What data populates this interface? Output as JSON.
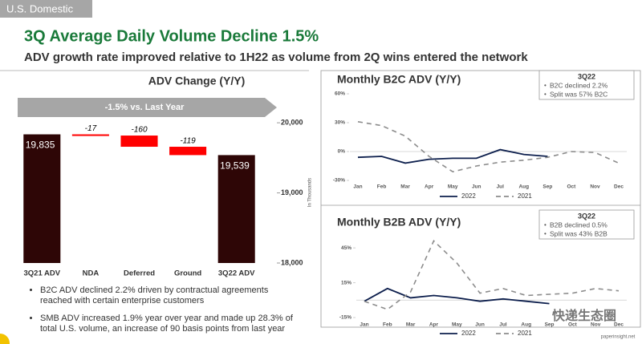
{
  "header": {
    "section": "U.S. Domestic",
    "title": "3Q Average Daily Volume Decline 1.5%",
    "subtitle": "ADV growth rate improved relative to 1H22 as volume from 2Q wins entered the network"
  },
  "chart_data": [
    {
      "type": "waterfall",
      "title": "ADV Change (Y/Y)",
      "banner": "-1.5% vs. Last Year",
      "y_label": "In Thousands",
      "categories": [
        "3Q21 ADV",
        "NDA",
        "Deferred",
        "Ground",
        "3Q22 ADV"
      ],
      "values": [
        19835,
        -17,
        -160,
        -119,
        19539
      ],
      "value_labels": [
        "19,835",
        "-17",
        "-160",
        "-119",
        "19,539"
      ],
      "colors": {
        "total": "#2e0606",
        "decrease": "#ff0000"
      },
      "ylim": [
        18000,
        20150
      ],
      "yticks": [
        {
          "value": 18000,
          "label": "18,000"
        },
        {
          "value": 19000,
          "label": "19,000"
        },
        {
          "value": 20000,
          "label": "20,000"
        }
      ]
    },
    {
      "type": "line",
      "title": "Monthly B2C ADV (Y/Y)",
      "categories": [
        "Jan",
        "Feb",
        "Mar",
        "Apr",
        "May",
        "Jun",
        "Jul",
        "Aug",
        "Sep",
        "Oct",
        "Nov",
        "Dec"
      ],
      "series": [
        {
          "name": "2022",
          "color": "#0d1f4d",
          "dashed": false,
          "values": [
            -6,
            -5,
            -12,
            -8,
            -7,
            -7,
            2,
            -3,
            -5,
            null,
            null,
            null
          ]
        },
        {
          "name": "2021",
          "color": "#8c8c8c",
          "dashed": true,
          "values": [
            31,
            27,
            16,
            -5,
            -21,
            -15,
            -11,
            -9,
            -6,
            0,
            -1,
            -12
          ]
        }
      ],
      "ylim": [
        -30,
        60
      ],
      "yticks": [
        {
          "value": -30,
          "label": "-30%"
        },
        {
          "value": 0,
          "label": "0%"
        },
        {
          "value": 30,
          "label": "30%"
        },
        {
          "value": 60,
          "label": "60%"
        }
      ],
      "box": {
        "heading": "3Q22",
        "lines": [
          "B2C declined 2.2%",
          "Split was 57% B2C"
        ]
      }
    },
    {
      "type": "line",
      "title": "Monthly B2B ADV (Y/Y)",
      "categories": [
        "Jan",
        "Feb",
        "Mar",
        "Apr",
        "May",
        "Jun",
        "Jul",
        "Aug",
        "Sep",
        "Oct",
        "Nov",
        "Dec"
      ],
      "series": [
        {
          "name": "2022",
          "color": "#0d1f4d",
          "dashed": false,
          "values": [
            -1,
            10,
            2,
            4,
            2,
            -1,
            1,
            -1,
            -3,
            null,
            null,
            null
          ]
        },
        {
          "name": "2021",
          "color": "#8c8c8c",
          "dashed": true,
          "values": [
            -1,
            -8,
            7,
            51,
            32,
            6,
            10,
            4,
            5,
            6,
            10,
            8
          ]
        }
      ],
      "ylim": [
        -15,
        52
      ],
      "yticks": [
        {
          "value": -15,
          "label": "-15%"
        },
        {
          "value": 15,
          "label": "15%"
        },
        {
          "value": 45,
          "label": "45%"
        }
      ],
      "box": {
        "heading": "3Q22",
        "lines": [
          "B2B declined 0.5%",
          "Split was 43% B2B"
        ]
      }
    }
  ],
  "bullets": [
    "B2C ADV declined 2.2% driven by contractual agreements reached with certain enterprise customers",
    "SMB ADV increased 1.9% year over year and made up 28.3% of total U.S. volume, an increase of 90 basis points from last year"
  ],
  "watermark": {
    "text": "快递生态圈",
    "url": "paperinsight.net"
  }
}
